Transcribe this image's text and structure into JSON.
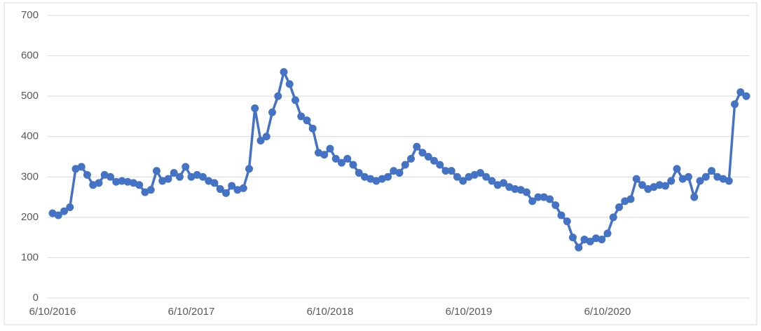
{
  "chart_data": {
    "type": "line",
    "categories": [
      "6/10/2016",
      null,
      null,
      null,
      null,
      null,
      null,
      null,
      null,
      null,
      null,
      null,
      null,
      null,
      null,
      null,
      null,
      null,
      null,
      null,
      null,
      null,
      null,
      null,
      "6/10/2017",
      null,
      null,
      null,
      null,
      null,
      null,
      null,
      null,
      null,
      null,
      null,
      null,
      null,
      null,
      null,
      null,
      null,
      null,
      null,
      null,
      null,
      null,
      null,
      "6/10/2018",
      null,
      null,
      null,
      null,
      null,
      null,
      null,
      null,
      null,
      null,
      null,
      null,
      null,
      null,
      null,
      null,
      null,
      null,
      null,
      null,
      null,
      null,
      null,
      "6/10/2019",
      null,
      null,
      null,
      null,
      null,
      null,
      null,
      null,
      null,
      null,
      null,
      null,
      null,
      null,
      null,
      null,
      null,
      null,
      null,
      null,
      null,
      null,
      null,
      "6/10/2020",
      null,
      null,
      null,
      null,
      null,
      null,
      null,
      null,
      null,
      null,
      null,
      null,
      null,
      null,
      null,
      null,
      null,
      null,
      null,
      null,
      null,
      null,
      null,
      null
    ],
    "values": [
      210,
      205,
      215,
      225,
      320,
      325,
      305,
      280,
      285,
      305,
      300,
      288,
      290,
      288,
      285,
      280,
      262,
      268,
      315,
      290,
      295,
      310,
      300,
      325,
      300,
      305,
      300,
      290,
      285,
      270,
      260,
      278,
      268,
      272,
      320,
      470,
      390,
      400,
      460,
      500,
      560,
      530,
      490,
      450,
      440,
      420,
      360,
      355,
      370,
      345,
      335,
      345,
      330,
      310,
      300,
      295,
      290,
      295,
      300,
      315,
      310,
      330,
      345,
      375,
      360,
      350,
      340,
      330,
      315,
      315,
      300,
      290,
      300,
      305,
      310,
      300,
      290,
      280,
      285,
      275,
      270,
      268,
      262,
      240,
      250,
      250,
      245,
      230,
      205,
      190,
      150,
      125,
      145,
      140,
      148,
      145,
      160,
      200,
      225,
      240,
      245,
      295,
      280,
      270,
      275,
      280,
      278,
      290,
      320,
      295,
      300,
      250,
      290,
      300,
      315,
      300,
      295,
      290,
      480,
      510,
      500
    ],
    "color": "#4472c4",
    "ylim": [
      0,
      700
    ],
    "yticks": [
      0,
      100,
      200,
      300,
      400,
      500,
      600,
      700
    ],
    "grid": true
  }
}
